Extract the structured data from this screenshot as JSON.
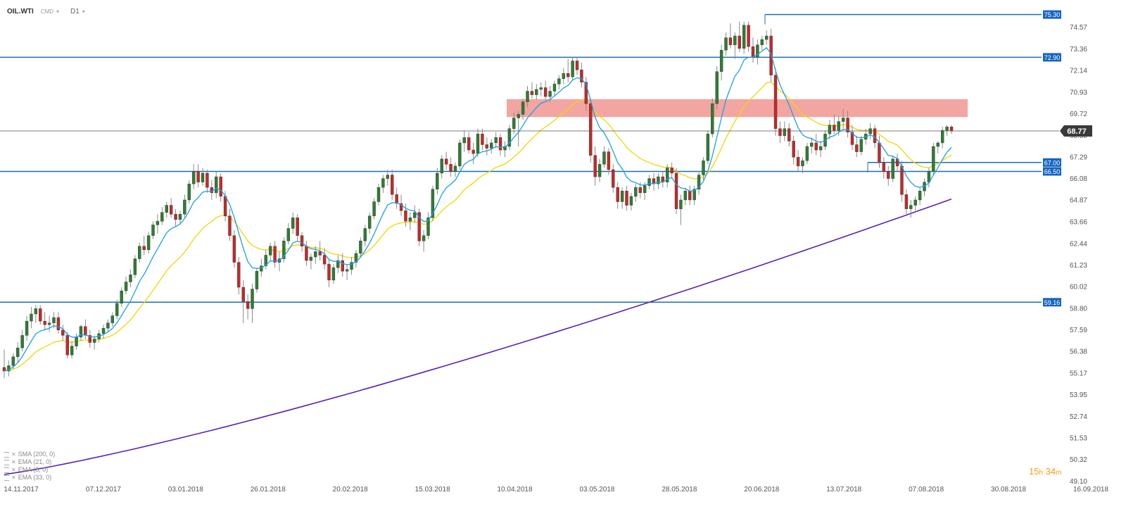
{
  "header": {
    "symbol": "OIL.WTI",
    "market": "CMD",
    "interval": "D1"
  },
  "indicators": [
    {
      "label": "SMA (200, 0)",
      "color": "#5b21b6"
    },
    {
      "label": "EMA (21, 0)",
      "color": "#f2d700"
    },
    {
      "label": "EMA (8, 0)",
      "color": "#1ba1e2"
    },
    {
      "label": "EMA (33, 0)",
      "color": "#888888"
    }
  ],
  "timer": {
    "hours": "15",
    "minutes": "34"
  },
  "chart_data": {
    "type": "candlestick",
    "symbol": "OIL.WTI",
    "timeframe": "D1",
    "ylim": [
      49.1,
      75.8
    ],
    "y_ticks": [
      "74.57",
      "73.36",
      "72.14",
      "70.93",
      "69.72",
      "68.50",
      "67.29",
      "66.08",
      "64.87",
      "63.66",
      "62.44",
      "61.23",
      "60.02",
      "58.80",
      "57.59",
      "56.38",
      "55.17",
      "53.95",
      "52.74",
      "51.53",
      "50.32",
      "49.10"
    ],
    "x_ticks": [
      "14.11.2017",
      "07.12.2017",
      "03.01.2018",
      "26.01.2018",
      "20.02.2018",
      "15.03.2018",
      "10.04.2018",
      "03.05.2018",
      "28.05.2018",
      "20.06.2018",
      "13.07.2018",
      "07.08.2018",
      "30.08.2018",
      "16.09.2018"
    ],
    "current_price": "68.77",
    "horizontal_levels": [
      "75.30",
      "72.90",
      "67.00",
      "66.50",
      "59.16"
    ],
    "resistance_zone": [
      69.55,
      70.55
    ],
    "candles": [
      [
        55.5,
        56.5,
        54.9,
        55.3
      ],
      [
        55.3,
        55.9,
        55.0,
        55.6
      ],
      [
        55.6,
        56.3,
        55.4,
        56.1
      ],
      [
        56.1,
        56.9,
        55.8,
        56.6
      ],
      [
        56.6,
        57.6,
        56.4,
        57.3
      ],
      [
        57.3,
        58.4,
        57.0,
        58.1
      ],
      [
        58.1,
        58.9,
        57.7,
        58.5
      ],
      [
        58.5,
        59.0,
        58.0,
        58.8
      ],
      [
        58.8,
        59.0,
        57.9,
        58.1
      ],
      [
        58.1,
        58.6,
        57.6,
        57.9
      ],
      [
        57.9,
        58.4,
        57.5,
        58.0
      ],
      [
        58.0,
        58.6,
        57.7,
        58.3
      ],
      [
        58.3,
        58.6,
        57.4,
        57.6
      ],
      [
        57.6,
        57.9,
        57.0,
        57.3
      ],
      [
        57.3,
        57.5,
        56.0,
        56.2
      ],
      [
        56.2,
        57.0,
        56.0,
        56.7
      ],
      [
        56.7,
        57.4,
        56.5,
        57.2
      ],
      [
        57.2,
        57.9,
        57.0,
        57.8
      ],
      [
        57.8,
        58.2,
        57.1,
        57.3
      ],
      [
        57.3,
        57.6,
        56.6,
        56.9
      ],
      [
        56.9,
        57.3,
        56.5,
        57.1
      ],
      [
        57.1,
        57.6,
        56.9,
        57.4
      ],
      [
        57.4,
        57.9,
        57.1,
        57.7
      ],
      [
        57.7,
        58.2,
        57.5,
        58.0
      ],
      [
        58.0,
        58.6,
        57.8,
        58.4
      ],
      [
        58.4,
        59.3,
        58.2,
        59.1
      ],
      [
        59.1,
        60.0,
        58.9,
        59.8
      ],
      [
        59.8,
        60.6,
        59.6,
        60.3
      ],
      [
        60.3,
        61.0,
        60.0,
        60.7
      ],
      [
        60.7,
        61.8,
        60.5,
        61.6
      ],
      [
        61.6,
        62.5,
        61.4,
        62.3
      ],
      [
        62.3,
        62.9,
        61.8,
        62.1
      ],
      [
        62.1,
        63.1,
        61.9,
        62.9
      ],
      [
        62.9,
        63.7,
        62.7,
        63.5
      ],
      [
        63.5,
        64.1,
        63.0,
        63.7
      ],
      [
        63.7,
        64.5,
        63.5,
        64.2
      ],
      [
        64.2,
        64.8,
        63.9,
        64.6
      ],
      [
        64.6,
        65.0,
        63.9,
        64.1
      ],
      [
        64.1,
        64.4,
        63.4,
        63.8
      ],
      [
        63.8,
        64.3,
        63.5,
        64.1
      ],
      [
        64.1,
        65.2,
        63.9,
        64.9
      ],
      [
        64.9,
        66.0,
        64.7,
        65.8
      ],
      [
        65.8,
        66.9,
        65.5,
        66.5
      ],
      [
        66.5,
        66.9,
        65.6,
        65.9
      ],
      [
        65.9,
        66.7,
        65.7,
        66.4
      ],
      [
        66.4,
        66.6,
        65.3,
        65.6
      ],
      [
        65.6,
        66.0,
        64.9,
        65.3
      ],
      [
        65.3,
        66.5,
        65.0,
        66.2
      ],
      [
        66.2,
        66.4,
        64.8,
        65.1
      ],
      [
        65.1,
        65.4,
        63.7,
        64.0
      ],
      [
        64.0,
        64.4,
        62.6,
        62.9
      ],
      [
        62.9,
        63.2,
        61.1,
        61.4
      ],
      [
        61.4,
        61.7,
        59.6,
        60.0
      ],
      [
        60.0,
        60.4,
        58.0,
        59.2
      ],
      [
        59.2,
        59.6,
        58.2,
        58.8
      ],
      [
        58.8,
        60.2,
        58.0,
        59.9
      ],
      [
        59.9,
        61.1,
        59.7,
        60.9
      ],
      [
        60.9,
        61.6,
        60.6,
        61.2
      ],
      [
        61.2,
        62.1,
        61.0,
        61.8
      ],
      [
        61.8,
        62.5,
        61.5,
        62.3
      ],
      [
        62.3,
        62.6,
        61.1,
        61.4
      ],
      [
        61.4,
        62.0,
        60.9,
        61.6
      ],
      [
        61.6,
        62.8,
        61.4,
        62.6
      ],
      [
        62.6,
        63.6,
        62.4,
        63.3
      ],
      [
        63.3,
        64.2,
        63.0,
        63.9
      ],
      [
        63.9,
        64.1,
        62.6,
        62.9
      ],
      [
        62.9,
        63.1,
        62.0,
        62.3
      ],
      [
        62.3,
        62.6,
        61.2,
        61.5
      ],
      [
        61.5,
        61.9,
        61.0,
        61.7
      ],
      [
        61.7,
        62.3,
        61.3,
        62.0
      ],
      [
        62.0,
        62.6,
        61.5,
        61.8
      ],
      [
        61.8,
        62.2,
        61.0,
        61.3
      ],
      [
        61.3,
        61.6,
        60.0,
        60.4
      ],
      [
        60.4,
        61.3,
        60.2,
        61.1
      ],
      [
        61.1,
        61.8,
        60.8,
        61.5
      ],
      [
        61.5,
        61.9,
        60.6,
        60.9
      ],
      [
        60.9,
        61.3,
        60.4,
        61.0
      ],
      [
        61.0,
        61.7,
        60.7,
        61.4
      ],
      [
        61.4,
        62.1,
        61.1,
        61.9
      ],
      [
        61.9,
        62.8,
        61.7,
        62.6
      ],
      [
        62.6,
        63.5,
        62.3,
        63.3
      ],
      [
        63.3,
        64.2,
        63.0,
        64.0
      ],
      [
        64.0,
        65.0,
        63.8,
        64.8
      ],
      [
        64.8,
        65.8,
        64.6,
        65.6
      ],
      [
        65.6,
        66.3,
        65.3,
        66.1
      ],
      [
        66.1,
        66.6,
        65.7,
        66.3
      ],
      [
        66.3,
        66.6,
        64.9,
        65.2
      ],
      [
        65.2,
        65.6,
        64.4,
        64.7
      ],
      [
        64.7,
        65.2,
        64.0,
        64.3
      ],
      [
        64.3,
        64.7,
        63.4,
        63.7
      ],
      [
        63.7,
        64.2,
        63.2,
        63.9
      ],
      [
        63.9,
        64.6,
        63.6,
        64.2
      ],
      [
        64.2,
        64.4,
        62.3,
        62.6
      ],
      [
        62.6,
        63.2,
        62.0,
        62.9
      ],
      [
        62.9,
        64.2,
        62.7,
        63.9
      ],
      [
        63.9,
        65.7,
        63.7,
        65.5
      ],
      [
        65.5,
        66.7,
        65.2,
        66.4
      ],
      [
        66.4,
        67.4,
        66.1,
        67.2
      ],
      [
        67.2,
        67.6,
        66.6,
        66.9
      ],
      [
        66.9,
        67.3,
        66.2,
        66.5
      ],
      [
        66.5,
        67.0,
        66.2,
        66.8
      ],
      [
        66.8,
        68.3,
        66.6,
        68.1
      ],
      [
        68.1,
        68.8,
        67.6,
        68.4
      ],
      [
        68.4,
        68.7,
        67.5,
        67.7
      ],
      [
        67.7,
        68.1,
        66.9,
        67.5
      ],
      [
        67.5,
        68.9,
        67.3,
        68.6
      ],
      [
        68.6,
        68.9,
        67.7,
        68.0
      ],
      [
        68.0,
        68.4,
        67.4,
        67.8
      ],
      [
        67.8,
        68.3,
        67.5,
        68.1
      ],
      [
        68.1,
        68.7,
        67.8,
        68.4
      ],
      [
        68.4,
        68.6,
        67.4,
        67.7
      ],
      [
        67.7,
        68.2,
        67.3,
        67.9
      ],
      [
        67.9,
        69.1,
        67.7,
        68.9
      ],
      [
        68.9,
        69.8,
        68.6,
        69.5
      ],
      [
        69.5,
        69.9,
        67.9,
        69.7
      ],
      [
        69.7,
        70.6,
        69.4,
        70.4
      ],
      [
        70.4,
        71.3,
        70.1,
        71.0
      ],
      [
        71.0,
        71.5,
        70.6,
        70.8
      ],
      [
        70.8,
        71.4,
        70.5,
        71.1
      ],
      [
        71.1,
        71.5,
        70.7,
        71.2
      ],
      [
        71.2,
        71.6,
        70.5,
        70.7
      ],
      [
        70.7,
        71.3,
        70.4,
        71.0
      ],
      [
        71.0,
        71.6,
        70.7,
        71.4
      ],
      [
        71.4,
        71.9,
        71.1,
        71.7
      ],
      [
        71.7,
        72.3,
        71.4,
        72.0
      ],
      [
        72.0,
        72.8,
        71.5,
        71.8
      ],
      [
        71.8,
        72.9,
        71.6,
        72.7
      ],
      [
        72.7,
        72.9,
        71.9,
        72.2
      ],
      [
        72.2,
        72.6,
        71.2,
        71.5
      ],
      [
        71.5,
        71.8,
        69.9,
        70.3
      ],
      [
        70.3,
        70.6,
        67.0,
        67.4
      ],
      [
        67.4,
        67.9,
        65.7,
        66.2
      ],
      [
        66.2,
        67.2,
        65.9,
        66.9
      ],
      [
        66.9,
        67.9,
        66.7,
        67.6
      ],
      [
        67.6,
        67.8,
        66.3,
        66.6
      ],
      [
        66.6,
        66.9,
        65.3,
        65.6
      ],
      [
        65.6,
        65.9,
        64.4,
        64.8
      ],
      [
        64.8,
        65.6,
        64.4,
        65.4
      ],
      [
        65.4,
        65.7,
        64.3,
        64.6
      ],
      [
        64.6,
        65.3,
        64.3,
        65.1
      ],
      [
        65.1,
        65.8,
        64.8,
        65.6
      ],
      [
        65.6,
        65.9,
        65.0,
        65.3
      ],
      [
        65.3,
        65.9,
        64.9,
        65.7
      ],
      [
        65.7,
        66.3,
        65.5,
        66.1
      ],
      [
        66.1,
        66.4,
        65.4,
        65.8
      ],
      [
        65.8,
        66.4,
        65.5,
        66.2
      ],
      [
        66.2,
        66.5,
        65.6,
        65.9
      ],
      [
        65.9,
        66.9,
        65.6,
        66.7
      ],
      [
        66.7,
        67.0,
        66.1,
        66.4
      ],
      [
        66.4,
        66.7,
        64.1,
        64.4
      ],
      [
        64.4,
        65.2,
        63.5,
        64.9
      ],
      [
        64.9,
        65.6,
        64.6,
        65.4
      ],
      [
        65.4,
        65.7,
        64.6,
        64.9
      ],
      [
        64.9,
        65.7,
        64.6,
        65.5
      ],
      [
        65.5,
        66.5,
        65.2,
        66.3
      ],
      [
        66.3,
        67.3,
        66.0,
        67.1
      ],
      [
        67.1,
        68.8,
        66.9,
        68.6
      ],
      [
        68.6,
        70.6,
        68.4,
        70.3
      ],
      [
        70.3,
        72.4,
        70.0,
        72.1
      ],
      [
        72.1,
        73.6,
        71.6,
        73.3
      ],
      [
        73.3,
        74.3,
        73.0,
        74.0
      ],
      [
        74.0,
        74.8,
        73.4,
        73.6
      ],
      [
        73.6,
        74.3,
        72.8,
        74.1
      ],
      [
        74.1,
        74.9,
        73.2,
        73.4
      ],
      [
        73.4,
        74.9,
        73.1,
        74.7
      ],
      [
        74.7,
        74.9,
        73.2,
        73.5
      ],
      [
        73.5,
        74.0,
        72.6,
        72.9
      ],
      [
        72.9,
        73.9,
        72.5,
        73.6
      ],
      [
        73.6,
        74.1,
        73.3,
        73.9
      ],
      [
        73.9,
        74.4,
        73.6,
        74.1
      ],
      [
        74.1,
        74.5,
        71.5,
        71.9
      ],
      [
        71.9,
        72.3,
        68.5,
        68.9
      ],
      [
        68.9,
        69.3,
        68.1,
        68.5
      ],
      [
        68.5,
        69.3,
        68.2,
        68.9
      ],
      [
        68.9,
        69.2,
        67.9,
        68.2
      ],
      [
        68.2,
        68.5,
        66.9,
        67.3
      ],
      [
        67.3,
        67.7,
        66.5,
        66.8
      ],
      [
        66.8,
        67.3,
        66.4,
        67.1
      ],
      [
        67.1,
        68.1,
        66.9,
        67.9
      ],
      [
        67.9,
        68.4,
        67.5,
        68.1
      ],
      [
        68.1,
        68.6,
        67.4,
        67.7
      ],
      [
        67.7,
        68.2,
        67.3,
        67.9
      ],
      [
        67.9,
        68.8,
        67.7,
        68.6
      ],
      [
        68.6,
        69.4,
        68.3,
        69.1
      ],
      [
        69.1,
        69.7,
        68.6,
        68.8
      ],
      [
        68.8,
        69.6,
        68.5,
        69.3
      ],
      [
        69.3,
        70.0,
        68.9,
        69.5
      ],
      [
        69.5,
        69.9,
        68.4,
        68.7
      ],
      [
        68.7,
        69.1,
        67.7,
        68.0
      ],
      [
        68.0,
        68.5,
        67.3,
        67.6
      ],
      [
        67.6,
        68.5,
        67.4,
        68.3
      ],
      [
        68.3,
        68.9,
        68.0,
        68.6
      ],
      [
        68.6,
        69.2,
        68.3,
        68.9
      ],
      [
        68.9,
        69.1,
        67.8,
        68.1
      ],
      [
        68.1,
        68.5,
        66.7,
        67.0
      ],
      [
        67.0,
        67.3,
        66.1,
        66.5
      ],
      [
        66.5,
        66.8,
        65.7,
        66.1
      ],
      [
        66.1,
        67.4,
        65.9,
        67.2
      ],
      [
        67.2,
        67.5,
        66.5,
        66.8
      ],
      [
        66.8,
        67.1,
        64.8,
        65.2
      ],
      [
        65.2,
        65.5,
        64.1,
        64.4
      ],
      [
        64.4,
        64.9,
        63.9,
        64.6
      ],
      [
        64.6,
        65.1,
        64.3,
        64.9
      ],
      [
        64.9,
        65.6,
        64.6,
        65.4
      ],
      [
        65.4,
        66.1,
        65.1,
        65.9
      ],
      [
        65.9,
        66.7,
        65.6,
        66.5
      ],
      [
        66.5,
        68.1,
        66.3,
        67.9
      ],
      [
        67.9,
        68.2,
        67.5,
        68.1
      ],
      [
        68.1,
        69.0,
        67.8,
        68.8
      ],
      [
        68.8,
        69.1,
        68.5,
        69.0
      ],
      [
        69.0,
        69.1,
        68.6,
        68.77
      ]
    ]
  }
}
